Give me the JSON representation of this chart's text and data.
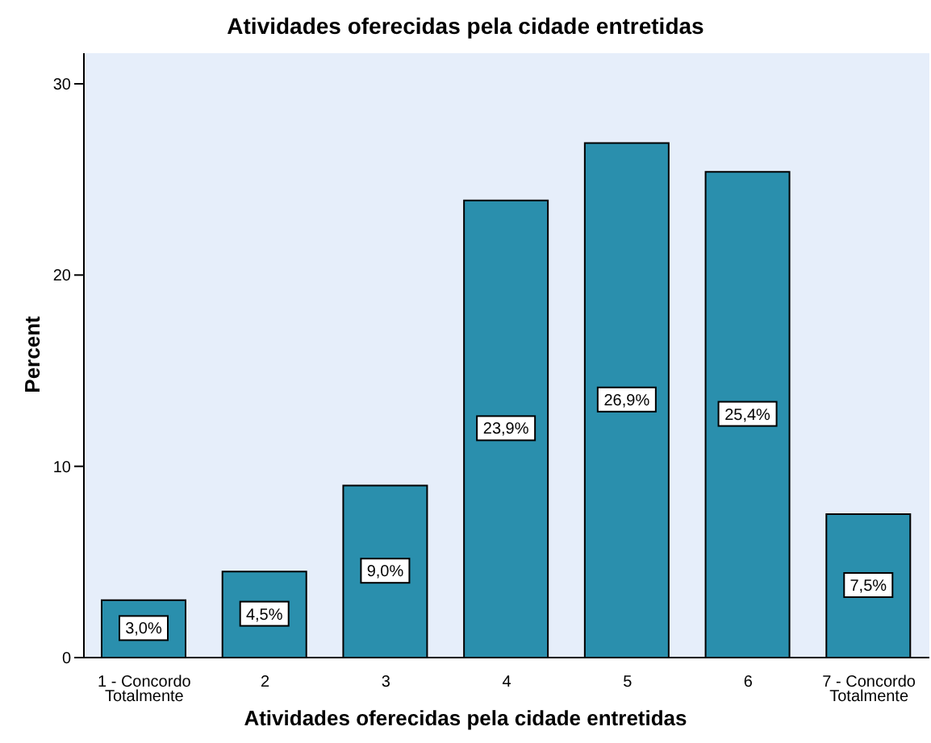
{
  "chart_data": {
    "type": "bar",
    "title": "Atividades oferecidas pela cidade entretidas",
    "xlabel": "Atividades oferecidas pela cidade entretidas",
    "ylabel": "Percent",
    "categories": [
      "1 - Concordo Totalmente",
      "2",
      "3",
      "4",
      "5",
      "6",
      "7 - Concordo Totalmente"
    ],
    "values": [
      3.0,
      4.5,
      9.0,
      23.9,
      26.9,
      25.4,
      7.5
    ],
    "value_labels": [
      "3,0%",
      "4,5%",
      "9,0%",
      "23,9%",
      "26,9%",
      "25,4%",
      "7,5%"
    ],
    "color": "#2a8fad",
    "ylim": [
      0,
      31.6
    ],
    "yticks": [
      0,
      10,
      20,
      30
    ],
    "legend": false
  }
}
